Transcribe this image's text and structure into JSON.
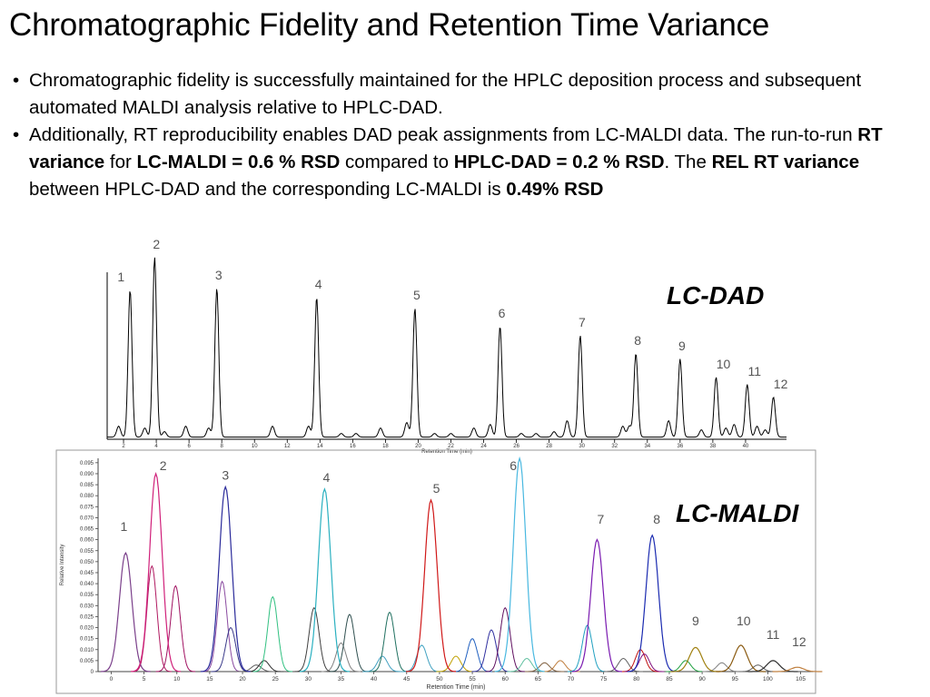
{
  "title": "Chromatographic Fidelity and Retention Time Variance",
  "bullets": {
    "b1": "Chromatographic fidelity is successfully maintained for the HPLC deposition process and subsequent automated MALDI analysis relative to HPLC-DAD.",
    "b2_a": "Additionally, RT reproducibility enables DAD peak assignments from LC-MALDI data. The run-to-run ",
    "b2_rt": "RT variance",
    "b2_for": " for ",
    "b2_lcmaldi": "LC-MALDI = 0.6 % RSD",
    "b2_cmp": " compared to ",
    "b2_dad": "HPLC-DAD = 0.2 % RSD",
    "b2_the": ". The ",
    "b2_rel": "REL RT variance",
    "b2_between": " between HPLC-DAD and the corresponding LC-MALDI is ",
    "b2_val": "0.49% RSD"
  },
  "chart_data": [
    {
      "type": "line",
      "label": "LC-DAD",
      "xlabel": "Retention Time (min)",
      "xlim": [
        1,
        42.5
      ],
      "xticks": [
        2,
        4,
        6,
        8,
        10,
        12,
        14,
        16,
        18,
        20,
        22,
        24,
        26,
        28,
        30,
        32,
        34,
        36,
        38,
        40
      ],
      "series_color": "#000000",
      "labeled_peaks": [
        {
          "label": "1",
          "rt": 2.4,
          "height": 0.81
        },
        {
          "label": "2",
          "rt": 3.9,
          "height": 0.99
        },
        {
          "label": "3",
          "rt": 7.7,
          "height": 0.82
        },
        {
          "label": "4",
          "rt": 13.8,
          "height": 0.77
        },
        {
          "label": "5",
          "rt": 19.8,
          "height": 0.71
        },
        {
          "label": "6",
          "rt": 25.0,
          "height": 0.61
        },
        {
          "label": "7",
          "rt": 29.9,
          "height": 0.56
        },
        {
          "label": "8",
          "rt": 33.3,
          "height": 0.46
        },
        {
          "label": "9",
          "rt": 36.0,
          "height": 0.43
        },
        {
          "label": "10",
          "rt": 38.2,
          "height": 0.33
        },
        {
          "label": "11",
          "rt": 40.1,
          "height": 0.29
        },
        {
          "label": "12",
          "rt": 41.7,
          "height": 0.22
        }
      ],
      "minor_peaks": [
        {
          "rt": 1.7,
          "height": 0.06
        },
        {
          "rt": 3.3,
          "height": 0.05
        },
        {
          "rt": 4.5,
          "height": 0.03
        },
        {
          "rt": 5.8,
          "height": 0.06
        },
        {
          "rt": 7.2,
          "height": 0.05
        },
        {
          "rt": 11.1,
          "height": 0.06
        },
        {
          "rt": 13.3,
          "height": 0.06
        },
        {
          "rt": 15.3,
          "height": 0.02
        },
        {
          "rt": 16.2,
          "height": 0.02
        },
        {
          "rt": 17.7,
          "height": 0.05
        },
        {
          "rt": 19.3,
          "height": 0.08
        },
        {
          "rt": 21.0,
          "height": 0.02
        },
        {
          "rt": 22.0,
          "height": 0.02
        },
        {
          "rt": 23.4,
          "height": 0.05
        },
        {
          "rt": 24.4,
          "height": 0.07
        },
        {
          "rt": 26.3,
          "height": 0.02
        },
        {
          "rt": 27.2,
          "height": 0.02
        },
        {
          "rt": 28.3,
          "height": 0.03
        },
        {
          "rt": 29.1,
          "height": 0.09
        },
        {
          "rt": 32.5,
          "height": 0.06
        },
        {
          "rt": 32.9,
          "height": 0.06
        },
        {
          "rt": 35.3,
          "height": 0.09
        },
        {
          "rt": 37.3,
          "height": 0.04
        },
        {
          "rt": 38.8,
          "height": 0.05
        },
        {
          "rt": 39.3,
          "height": 0.07
        },
        {
          "rt": 40.7,
          "height": 0.06
        },
        {
          "rt": 41.2,
          "height": 0.04
        }
      ]
    },
    {
      "type": "line",
      "label": "LC-MALDI",
      "xlabel": "Retention Time (min)",
      "ylabel": "Relative Intensity",
      "xlim": [
        -2,
        107
      ],
      "ylim": [
        0,
        0.097
      ],
      "xticks": [
        0,
        5,
        10,
        15,
        20,
        25,
        30,
        35,
        40,
        45,
        50,
        55,
        60,
        65,
        70,
        75,
        80,
        85,
        90,
        95,
        100,
        105
      ],
      "yticks": [
        "0",
        "0.005",
        "0.010",
        "0.015",
        "0.020",
        "0.025",
        "0.030",
        "0.035",
        "0.040",
        "0.045",
        "0.050",
        "0.055",
        "0.060",
        "0.065",
        "0.070",
        "0.075",
        "0.080",
        "0.085",
        "0.090",
        "0.095"
      ],
      "labeled_peaks": [
        {
          "label": "1",
          "rt": 2.2,
          "intensity": 0.054,
          "color": "#7a3f8a"
        },
        {
          "label": "2",
          "rt": 6.8,
          "intensity": 0.09,
          "color": "#d0207a"
        },
        {
          "label": "3",
          "rt": 17.4,
          "intensity": 0.084,
          "color": "#2a2a9a"
        },
        {
          "label": "4",
          "rt": 32.5,
          "intensity": 0.083,
          "color": "#2ab0c0"
        },
        {
          "label": "5",
          "rt": 48.7,
          "intensity": 0.078,
          "color": "#d01818"
        },
        {
          "label": "6",
          "rt": 62.2,
          "intensity": 0.097,
          "color": "#48b8e0"
        },
        {
          "label": "7",
          "rt": 74.0,
          "intensity": 0.06,
          "color": "#7a1ab0"
        },
        {
          "label": "8",
          "rt": 82.4,
          "intensity": 0.062,
          "color": "#1a2ab0"
        },
        {
          "label": "9",
          "rt": 89.0,
          "intensity": 0.011,
          "color": "#a08010"
        },
        {
          "label": "10",
          "rt": 95.9,
          "intensity": 0.012,
          "color": "#8a5a10"
        },
        {
          "label": "11",
          "rt": 100.8,
          "intensity": 0.005,
          "color": "#303030"
        },
        {
          "label": "12",
          "rt": 104.5,
          "intensity": 0.002,
          "color": "#c08040"
        }
      ],
      "minor_peaks": [
        {
          "rt": 6.2,
          "intensity": 0.048,
          "color": "#b01860"
        },
        {
          "rt": 9.8,
          "intensity": 0.039,
          "color": "#a01060"
        },
        {
          "rt": 16.9,
          "intensity": 0.041,
          "color": "#8a4aa0"
        },
        {
          "rt": 18.2,
          "intensity": 0.02,
          "color": "#3a3a8a"
        },
        {
          "rt": 22.1,
          "intensity": 0.003,
          "color": "#606060"
        },
        {
          "rt": 23.3,
          "intensity": 0.005,
          "color": "#303030"
        },
        {
          "rt": 24.6,
          "intensity": 0.034,
          "color": "#30c080"
        },
        {
          "rt": 30.9,
          "intensity": 0.029,
          "color": "#404040"
        },
        {
          "rt": 35.0,
          "intensity": 0.013,
          "color": "#808080"
        },
        {
          "rt": 36.3,
          "intensity": 0.026,
          "color": "#305050"
        },
        {
          "rt": 41.3,
          "intensity": 0.007,
          "color": "#40a0c0"
        },
        {
          "rt": 42.4,
          "intensity": 0.027,
          "color": "#207060"
        },
        {
          "rt": 47.3,
          "intensity": 0.012,
          "color": "#40a0c0"
        },
        {
          "rt": 52.5,
          "intensity": 0.007,
          "color": "#c0a000"
        },
        {
          "rt": 55.0,
          "intensity": 0.015,
          "color": "#2060c0"
        },
        {
          "rt": 57.9,
          "intensity": 0.019,
          "color": "#3030a0"
        },
        {
          "rt": 60.0,
          "intensity": 0.029,
          "color": "#601060"
        },
        {
          "rt": 63.3,
          "intensity": 0.006,
          "color": "#60c0a0"
        },
        {
          "rt": 66.0,
          "intensity": 0.004,
          "color": "#806040"
        },
        {
          "rt": 68.4,
          "intensity": 0.005,
          "color": "#c08040"
        },
        {
          "rt": 72.5,
          "intensity": 0.021,
          "color": "#20a0c0"
        },
        {
          "rt": 78.0,
          "intensity": 0.006,
          "color": "#606060"
        },
        {
          "rt": 80.6,
          "intensity": 0.01,
          "color": "#c01010"
        },
        {
          "rt": 81.2,
          "intensity": 0.008,
          "color": "#801080"
        },
        {
          "rt": 87.5,
          "intensity": 0.005,
          "color": "#20a040"
        },
        {
          "rt": 93.0,
          "intensity": 0.004,
          "color": "#808080"
        },
        {
          "rt": 98.5,
          "intensity": 0.003,
          "color": "#606060"
        }
      ]
    }
  ]
}
